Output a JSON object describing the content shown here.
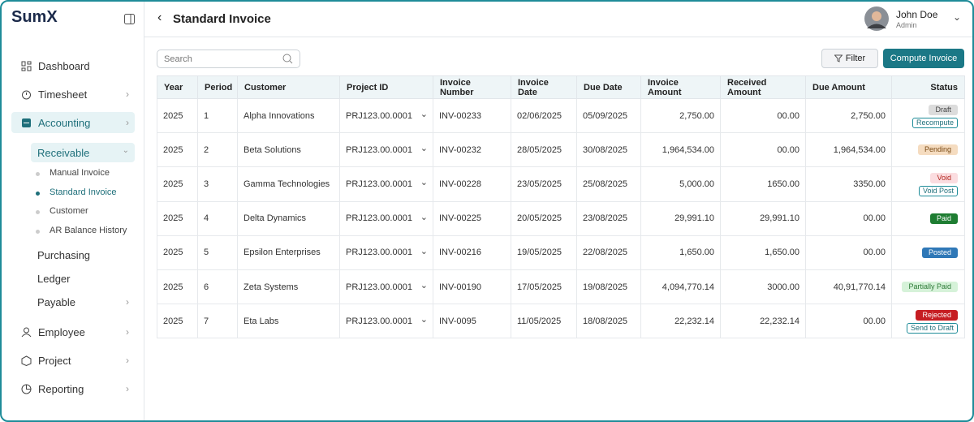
{
  "brand": "SumX",
  "sidebar": {
    "dashboard": "Dashboard",
    "timesheet": "Timesheet",
    "accounting": "Accounting",
    "receivable": "Receivable",
    "receivable_items": [
      "Manual Invoice",
      "Standard Invoice",
      "Customer",
      "AR Balance History"
    ],
    "purchasing": "Purchasing",
    "ledger": "Ledger",
    "payable": "Payable",
    "employee": "Employee",
    "project": "Project",
    "reporting": "Reporting"
  },
  "header": {
    "title": "Standard Invoice",
    "user_name": "John Doe",
    "user_role": "Admin"
  },
  "toolbar": {
    "search_placeholder": "Search",
    "filter": "Filter",
    "compute": "Compute Invoice"
  },
  "table": {
    "columns": [
      "Year",
      "Period",
      "Customer",
      "Project ID",
      "Invoice Number",
      "Invoice Date",
      "Due Date",
      "Invoice Amount",
      "Received Amount",
      "Due Amount",
      "Status"
    ],
    "rows": [
      [
        "2025",
        "1",
        "Alpha Innovations",
        "PRJ123.00.0001",
        "INV-00233",
        "02/06/2025",
        "05/09/2025",
        "2,750.00",
        "00.00",
        "2,750.00"
      ],
      [
        "2025",
        "2",
        "Beta Solutions",
        "PRJ123.00.0001",
        "INV-00232",
        "28/05/2025",
        "30/08/2025",
        "1,964,534.00",
        "00.00",
        "1,964,534.00"
      ],
      [
        "2025",
        "3",
        "Gamma Technologies",
        "PRJ123.00.0001",
        "INV-00228",
        "23/05/2025",
        "25/08/2025",
        "5,000.00",
        "1650.00",
        "3350.00"
      ],
      [
        "2025",
        "4",
        "Delta Dynamics",
        "PRJ123.00.0001",
        "INV-00225",
        "20/05/2025",
        "23/08/2025",
        "29,991.10",
        "29,991.10",
        "00.00"
      ],
      [
        "2025",
        "5",
        "Epsilon Enterprises",
        "PRJ123.00.0001",
        "INV-00216",
        "19/05/2025",
        "22/08/2025",
        "1,650.00",
        "1,650.00",
        "00.00"
      ],
      [
        "2025",
        "6",
        "Zeta Systems",
        "PRJ123.00.0001",
        "INV-00190",
        "17/05/2025",
        "19/08/2025",
        "4,094,770.14",
        "3000.00",
        "40,91,770.14"
      ],
      [
        "2025",
        "7",
        "Eta Labs",
        "PRJ123.00.0001",
        "INV-0095",
        "11/05/2025",
        "18/08/2025",
        "22,232.14",
        "22,232.14",
        "00.00"
      ]
    ],
    "status": [
      {
        "label": "Draft",
        "action": "Recompute"
      },
      {
        "label": "Pending"
      },
      {
        "label": "Void",
        "action": "Void Post"
      },
      {
        "label": "Paid"
      },
      {
        "label": "Posted"
      },
      {
        "label": "Partially Paid"
      },
      {
        "label": "Rejected",
        "action": "Send to Draft"
      }
    ]
  }
}
